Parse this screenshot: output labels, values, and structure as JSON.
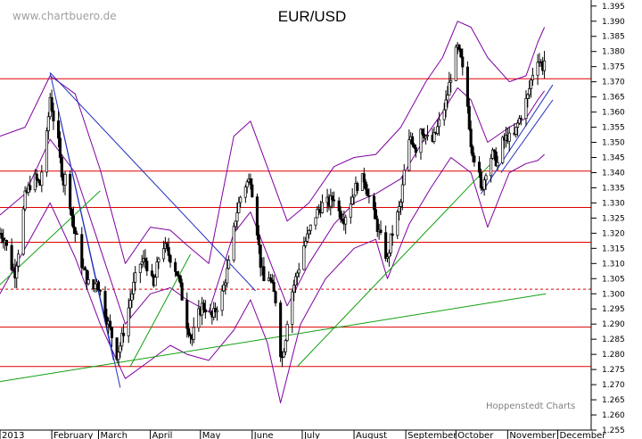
{
  "chart_data": {
    "type": "candlestick",
    "title": "EUR/USD",
    "watermark": "www.chartbuero.de",
    "credit": "Hoppenstedt Charts",
    "grid": false,
    "colors": {
      "candles": "#000000",
      "horizontal_levels": "#e00000",
      "bollinger_bands": "#8000a0",
      "trendlines_blue": "#2030c0",
      "trendlines_green": "#10a010",
      "axis": "#000000"
    },
    "ylim": [
      1.255,
      1.397
    ],
    "y_ticks": [
      "1.395",
      "1.390",
      "1.385",
      "1.380",
      "1.375",
      "1.370",
      "1.365",
      "1.360",
      "1.355",
      "1.350",
      "1.345",
      "1.340",
      "1.335",
      "1.330",
      "1.325",
      "1.320",
      "1.315",
      "1.310",
      "1.305",
      "1.300",
      "1.295",
      "1.290",
      "1.285",
      "1.280",
      "1.275",
      "1.270",
      "1.265",
      "1.260",
      "1.255"
    ],
    "x_ticks": [
      "2013",
      "February",
      "March",
      "April",
      "May",
      "June",
      "July",
      "August",
      "September",
      "October",
      "November",
      "December"
    ],
    "x_tick_days": [
      0,
      31,
      59,
      90,
      120,
      151,
      181,
      212,
      243,
      273,
      304,
      334
    ],
    "x_days_total": 354,
    "horizontal_levels": [
      {
        "value": 1.371,
        "style": "solid"
      },
      {
        "value": 1.3405,
        "style": "solid"
      },
      {
        "value": 1.3285,
        "style": "solid"
      },
      {
        "value": 1.317,
        "style": "solid"
      },
      {
        "value": 1.3015,
        "style": "dashed"
      },
      {
        "value": 1.289,
        "style": "solid"
      },
      {
        "value": 1.276,
        "style": "solid"
      }
    ],
    "close_path": [
      [
        0,
        1.32
      ],
      [
        3,
        1.318
      ],
      [
        6,
        1.31
      ],
      [
        9,
        1.307
      ],
      [
        12,
        1.318
      ],
      [
        15,
        1.332
      ],
      [
        18,
        1.336
      ],
      [
        21,
        1.338
      ],
      [
        24,
        1.336
      ],
      [
        26,
        1.345
      ],
      [
        28,
        1.352
      ],
      [
        30,
        1.365
      ],
      [
        32,
        1.358
      ],
      [
        34,
        1.355
      ],
      [
        36,
        1.344
      ],
      [
        38,
        1.337
      ],
      [
        40,
        1.34
      ],
      [
        42,
        1.33
      ],
      [
        44,
        1.322
      ],
      [
        46,
        1.318
      ],
      [
        48,
        1.312
      ],
      [
        50,
        1.308
      ],
      [
        52,
        1.305
      ],
      [
        55,
        1.3
      ],
      [
        58,
        1.305
      ],
      [
        61,
        1.298
      ],
      [
        64,
        1.292
      ],
      [
        67,
        1.286
      ],
      [
        70,
        1.28
      ],
      [
        72,
        1.283
      ],
      [
        75,
        1.29
      ],
      [
        78,
        1.298
      ],
      [
        81,
        1.305
      ],
      [
        84,
        1.31
      ],
      [
        87,
        1.311
      ],
      [
        90,
        1.306
      ],
      [
        92,
        1.302
      ],
      [
        95,
        1.312
      ],
      [
        98,
        1.316
      ],
      [
        101,
        1.313
      ],
      [
        104,
        1.31
      ],
      [
        107,
        1.305
      ],
      [
        110,
        1.296
      ],
      [
        112,
        1.29
      ],
      [
        115,
        1.285
      ],
      [
        118,
        1.292
      ],
      [
        121,
        1.296
      ],
      [
        124,
        1.295
      ],
      [
        127,
        1.292
      ],
      [
        130,
        1.296
      ],
      [
        133,
        1.3
      ],
      [
        135,
        1.305
      ],
      [
        138,
        1.312
      ],
      [
        141,
        1.325
      ],
      [
        144,
        1.332
      ],
      [
        147,
        1.336
      ],
      [
        150,
        1.338
      ],
      [
        152,
        1.33
      ],
      [
        154,
        1.321
      ],
      [
        156,
        1.31
      ],
      [
        158,
        1.304
      ],
      [
        160,
        1.308
      ],
      [
        163,
        1.302
      ],
      [
        165,
        1.298
      ],
      [
        167,
        1.283
      ],
      [
        169,
        1.279
      ],
      [
        171,
        1.286
      ],
      [
        173,
        1.297
      ],
      [
        176,
        1.303
      ],
      [
        179,
        1.309
      ],
      [
        182,
        1.316
      ],
      [
        185,
        1.32
      ],
      [
        188,
        1.325
      ],
      [
        191,
        1.328
      ],
      [
        194,
        1.33
      ],
      [
        197,
        1.33
      ],
      [
        200,
        1.332
      ],
      [
        203,
        1.327
      ],
      [
        206,
        1.325
      ],
      [
        209,
        1.329
      ],
      [
        212,
        1.334
      ],
      [
        215,
        1.337
      ],
      [
        218,
        1.338
      ],
      [
        221,
        1.332
      ],
      [
        224,
        1.326
      ],
      [
        227,
        1.32
      ],
      [
        230,
        1.315
      ],
      [
        232,
        1.311
      ],
      [
        234,
        1.318
      ],
      [
        237,
        1.324
      ],
      [
        240,
        1.33
      ],
      [
        243,
        1.345
      ],
      [
        246,
        1.352
      ],
      [
        249,
        1.348
      ],
      [
        252,
        1.355
      ],
      [
        255,
        1.352
      ],
      [
        258,
        1.349
      ],
      [
        261,
        1.353
      ],
      [
        264,
        1.358
      ],
      [
        267,
        1.363
      ],
      [
        270,
        1.372
      ],
      [
        272,
        1.378
      ],
      [
        274,
        1.381
      ],
      [
        276,
        1.377
      ],
      [
        278,
        1.37
      ],
      [
        280,
        1.362
      ],
      [
        282,
        1.35
      ],
      [
        284,
        1.345
      ],
      [
        286,
        1.343
      ],
      [
        288,
        1.334
      ],
      [
        290,
        1.338
      ],
      [
        292,
        1.344
      ],
      [
        295,
        1.346
      ],
      [
        298,
        1.343
      ],
      [
        301,
        1.35
      ],
      [
        304,
        1.352
      ],
      [
        307,
        1.35
      ],
      [
        310,
        1.356
      ],
      [
        313,
        1.361
      ],
      [
        316,
        1.365
      ],
      [
        319,
        1.373
      ],
      [
        322,
        1.378
      ],
      [
        325,
        1.375
      ],
      [
        327,
        1.379
      ]
    ],
    "bollinger_upper": [
      [
        0,
        1.352
      ],
      [
        15,
        1.355
      ],
      [
        30,
        1.372
      ],
      [
        45,
        1.366
      ],
      [
        60,
        1.341
      ],
      [
        75,
        1.31
      ],
      [
        90,
        1.322
      ],
      [
        102,
        1.321
      ],
      [
        112,
        1.316
      ],
      [
        125,
        1.31
      ],
      [
        140,
        1.352
      ],
      [
        150,
        1.357
      ],
      [
        160,
        1.342
      ],
      [
        172,
        1.324
      ],
      [
        185,
        1.33
      ],
      [
        200,
        1.342
      ],
      [
        212,
        1.345
      ],
      [
        225,
        1.346
      ],
      [
        240,
        1.355
      ],
      [
        255,
        1.37
      ],
      [
        265,
        1.378
      ],
      [
        274,
        1.39
      ],
      [
        282,
        1.388
      ],
      [
        292,
        1.378
      ],
      [
        305,
        1.37
      ],
      [
        315,
        1.372
      ],
      [
        322,
        1.383
      ],
      [
        326,
        1.388
      ]
    ],
    "bollinger_lower": [
      [
        0,
        1.3
      ],
      [
        15,
        1.315
      ],
      [
        30,
        1.33
      ],
      [
        45,
        1.312
      ],
      [
        60,
        1.29
      ],
      [
        75,
        1.272
      ],
      [
        90,
        1.278
      ],
      [
        102,
        1.283
      ],
      [
        112,
        1.28
      ],
      [
        125,
        1.278
      ],
      [
        140,
        1.288
      ],
      [
        150,
        1.298
      ],
      [
        160,
        1.284
      ],
      [
        168,
        1.264
      ],
      [
        180,
        1.29
      ],
      [
        195,
        1.305
      ],
      [
        212,
        1.315
      ],
      [
        225,
        1.318
      ],
      [
        232,
        1.305
      ],
      [
        245,
        1.323
      ],
      [
        258,
        1.335
      ],
      [
        270,
        1.345
      ],
      [
        282,
        1.34
      ],
      [
        292,
        1.322
      ],
      [
        305,
        1.34
      ],
      [
        315,
        1.343
      ],
      [
        322,
        1.344
      ],
      [
        326,
        1.346
      ]
    ],
    "bollinger_middle": [
      [
        0,
        1.326
      ],
      [
        15,
        1.333
      ],
      [
        30,
        1.351
      ],
      [
        45,
        1.34
      ],
      [
        60,
        1.315
      ],
      [
        75,
        1.29
      ],
      [
        90,
        1.3
      ],
      [
        102,
        1.302
      ],
      [
        112,
        1.298
      ],
      [
        125,
        1.294
      ],
      [
        140,
        1.32
      ],
      [
        150,
        1.327
      ],
      [
        160,
        1.313
      ],
      [
        172,
        1.296
      ],
      [
        185,
        1.31
      ],
      [
        200,
        1.323
      ],
      [
        212,
        1.33
      ],
      [
        225,
        1.333
      ],
      [
        240,
        1.338
      ],
      [
        255,
        1.352
      ],
      [
        265,
        1.36
      ],
      [
        274,
        1.368
      ],
      [
        282,
        1.364
      ],
      [
        292,
        1.35
      ],
      [
        305,
        1.355
      ],
      [
        315,
        1.358
      ],
      [
        322,
        1.364
      ],
      [
        326,
        1.367
      ]
    ],
    "trendlines": [
      {
        "color": "blue",
        "from": [
          30,
          1.373
        ],
        "to": [
          153,
          1.301
        ]
      },
      {
        "color": "blue",
        "from": [
          30,
          1.373
        ],
        "to": [
          72,
          1.269
        ]
      },
      {
        "color": "blue",
        "from": [
          36,
          1.358
        ],
        "to": [
          68,
          1.278
        ]
      },
      {
        "color": "blue",
        "from": [
          288,
          1.333
        ],
        "to": [
          331,
          1.369
        ]
      },
      {
        "color": "blue",
        "from": [
          300,
          1.34
        ],
        "to": [
          331,
          1.364
        ]
      },
      {
        "color": "green",
        "from": [
          0,
          1.271
        ],
        "to": [
          327,
          1.3
        ]
      },
      {
        "color": "green",
        "from": [
          0,
          1.303
        ],
        "to": [
          60,
          1.334
        ]
      },
      {
        "color": "green",
        "from": [
          78,
          1.276
        ],
        "to": [
          114,
          1.313
        ]
      },
      {
        "color": "green",
        "from": [
          178,
          1.276
        ],
        "to": [
          294,
          1.343
        ]
      }
    ]
  }
}
